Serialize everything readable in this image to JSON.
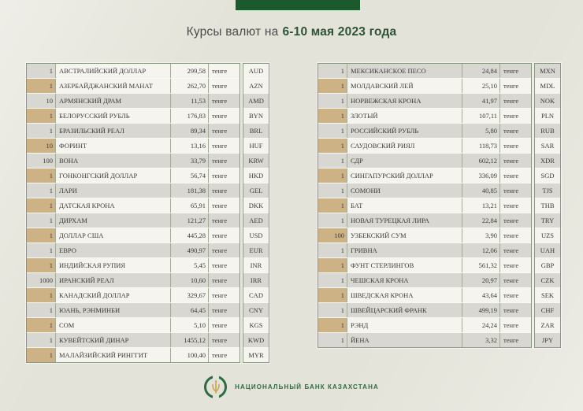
{
  "title": {
    "prefix": "Курсы валют на",
    "period": "6-10 мая 2023 года"
  },
  "unit_label": "тенге",
  "tables": {
    "left": {
      "rows": [
        {
          "qty": "1",
          "name": "АВСТРАЛИЙСКИЙ ДОЛЛАР",
          "rate": "299,58",
          "code": "AUD"
        },
        {
          "qty": "1",
          "name": "АЗЕРБАЙДЖАНСКИЙ МАНАТ",
          "rate": "262,70",
          "code": "AZN"
        },
        {
          "qty": "10",
          "name": "АРМЯНСКИЙ ДРАМ",
          "rate": "11,53",
          "code": "AMD"
        },
        {
          "qty": "1",
          "name": "БЕЛОРУССКИЙ РУБЛЬ",
          "rate": "176,83",
          "code": "BYN"
        },
        {
          "qty": "1",
          "name": "БРАЗИЛЬСКИЙ РЕАЛ",
          "rate": "89,34",
          "code": "BRL"
        },
        {
          "qty": "10",
          "name": "ФОРИНТ",
          "rate": "13,16",
          "code": "HUF"
        },
        {
          "qty": "100",
          "name": "ВОНА",
          "rate": "33,79",
          "code": "KRW"
        },
        {
          "qty": "1",
          "name": "ГОНКОНГСКИЙ ДОЛЛАР",
          "rate": "56,74",
          "code": "HKD"
        },
        {
          "qty": "1",
          "name": "ЛАРИ",
          "rate": "181,38",
          "code": "GEL"
        },
        {
          "qty": "1",
          "name": "ДАТСКАЯ КРОНА",
          "rate": "65,91",
          "code": "DKK"
        },
        {
          "qty": "1",
          "name": "ДИРХАМ",
          "rate": "121,27",
          "code": "AED"
        },
        {
          "qty": "1",
          "name": "ДОЛЛАР США",
          "rate": "445,28",
          "code": "USD"
        },
        {
          "qty": "1",
          "name": "ЕВРО",
          "rate": "490,97",
          "code": "EUR"
        },
        {
          "qty": "1",
          "name": "ИНДИЙСКАЯ РУПИЯ",
          "rate": "5,45",
          "code": "INR"
        },
        {
          "qty": "1000",
          "name": "ИРАНСКИЙ РЕАЛ",
          "rate": "10,60",
          "code": "IRR"
        },
        {
          "qty": "1",
          "name": "КАНАДСКИЙ ДОЛЛАР",
          "rate": "329,67",
          "code": "CAD"
        },
        {
          "qty": "1",
          "name": "ЮАНЬ, РЭНМИНБИ",
          "rate": "64,45",
          "code": "CNY"
        },
        {
          "qty": "1",
          "name": "СОМ",
          "rate": "5,10",
          "code": "KGS"
        },
        {
          "qty": "1",
          "name": "КУВЕЙТСКИЙ ДИНАР",
          "rate": "1455,12",
          "code": "KWD"
        },
        {
          "qty": "1",
          "name": "МАЛАЙЗИЙСКИЙ РИНГГИТ",
          "rate": "100,40",
          "code": "MYR"
        }
      ]
    },
    "right": {
      "rows": [
        {
          "qty": "1",
          "name": "МЕКСИКАНСКОЕ ПЕСО",
          "rate": "24,84",
          "code": "MXN"
        },
        {
          "qty": "1",
          "name": "МОЛДАВСКИЙ ЛЕЙ",
          "rate": "25,10",
          "code": "MDL"
        },
        {
          "qty": "1",
          "name": "НОРВЕЖСКАЯ КРОНА",
          "rate": "41,97",
          "code": "NOK"
        },
        {
          "qty": "1",
          "name": "ЗЛОТЫЙ",
          "rate": "107,11",
          "code": "PLN"
        },
        {
          "qty": "1",
          "name": "РОССИЙСКИЙ РУБЛЬ",
          "rate": "5,80",
          "code": "RUB"
        },
        {
          "qty": "1",
          "name": "САУДОВСКИЙ РИЯЛ",
          "rate": "118,73",
          "code": "SAR"
        },
        {
          "qty": "1",
          "name": "СДР",
          "rate": "602,12",
          "code": "XDR"
        },
        {
          "qty": "1",
          "name": "СИНГАПУРСКИЙ ДОЛЛАР",
          "rate": "336,09",
          "code": "SGD"
        },
        {
          "qty": "1",
          "name": "СОМОНИ",
          "rate": "40,85",
          "code": "TJS"
        },
        {
          "qty": "1",
          "name": "БАТ",
          "rate": "13,21",
          "code": "THB"
        },
        {
          "qty": "1",
          "name": "НОВАЯ ТУРЕЦКАЯ ЛИРА",
          "rate": "22,84",
          "code": "TRY"
        },
        {
          "qty": "100",
          "name": "УЗБЕКСКИЙ СУМ",
          "rate": "3,90",
          "code": "UZS"
        },
        {
          "qty": "1",
          "name": "ГРИВНА",
          "rate": "12,06",
          "code": "UAH"
        },
        {
          "qty": "1",
          "name": "ФУНТ СТЕРЛИНГОВ",
          "rate": "561,32",
          "code": "GBP"
        },
        {
          "qty": "1",
          "name": "ЧЕШСКАЯ КРОНА",
          "rate": "20,97",
          "code": "CZK"
        },
        {
          "qty": "1",
          "name": "ШВЕДСКАЯ КРОНА",
          "rate": "43,64",
          "code": "SEK"
        },
        {
          "qty": "1",
          "name": "ШВЕЙЦАРСКИЙ ФРАНК",
          "rate": "499,19",
          "code": "CHF"
        },
        {
          "qty": "1",
          "name": "РЭНД",
          "rate": "24,24",
          "code": "ZAR"
        },
        {
          "qty": "1",
          "name": "ЙЕНА",
          "rate": "3,32",
          "code": "JPY"
        }
      ]
    }
  },
  "footer": {
    "bank_name": "НАЦИОНАЛЬНЫЙ БАНК КАЗАХСТАНА"
  },
  "colors": {
    "header_bar_green": "#1c5a2d",
    "title_period_green": "#2c5337",
    "row_tan": "#cdb285",
    "row_gray": "#d8d7d1",
    "row_light": "#f5f4ee",
    "table_border": "#8b9583",
    "footer_green": "#2f6b42",
    "emblem_gold": "#c9a551",
    "page_background": "#e4e3d9"
  }
}
